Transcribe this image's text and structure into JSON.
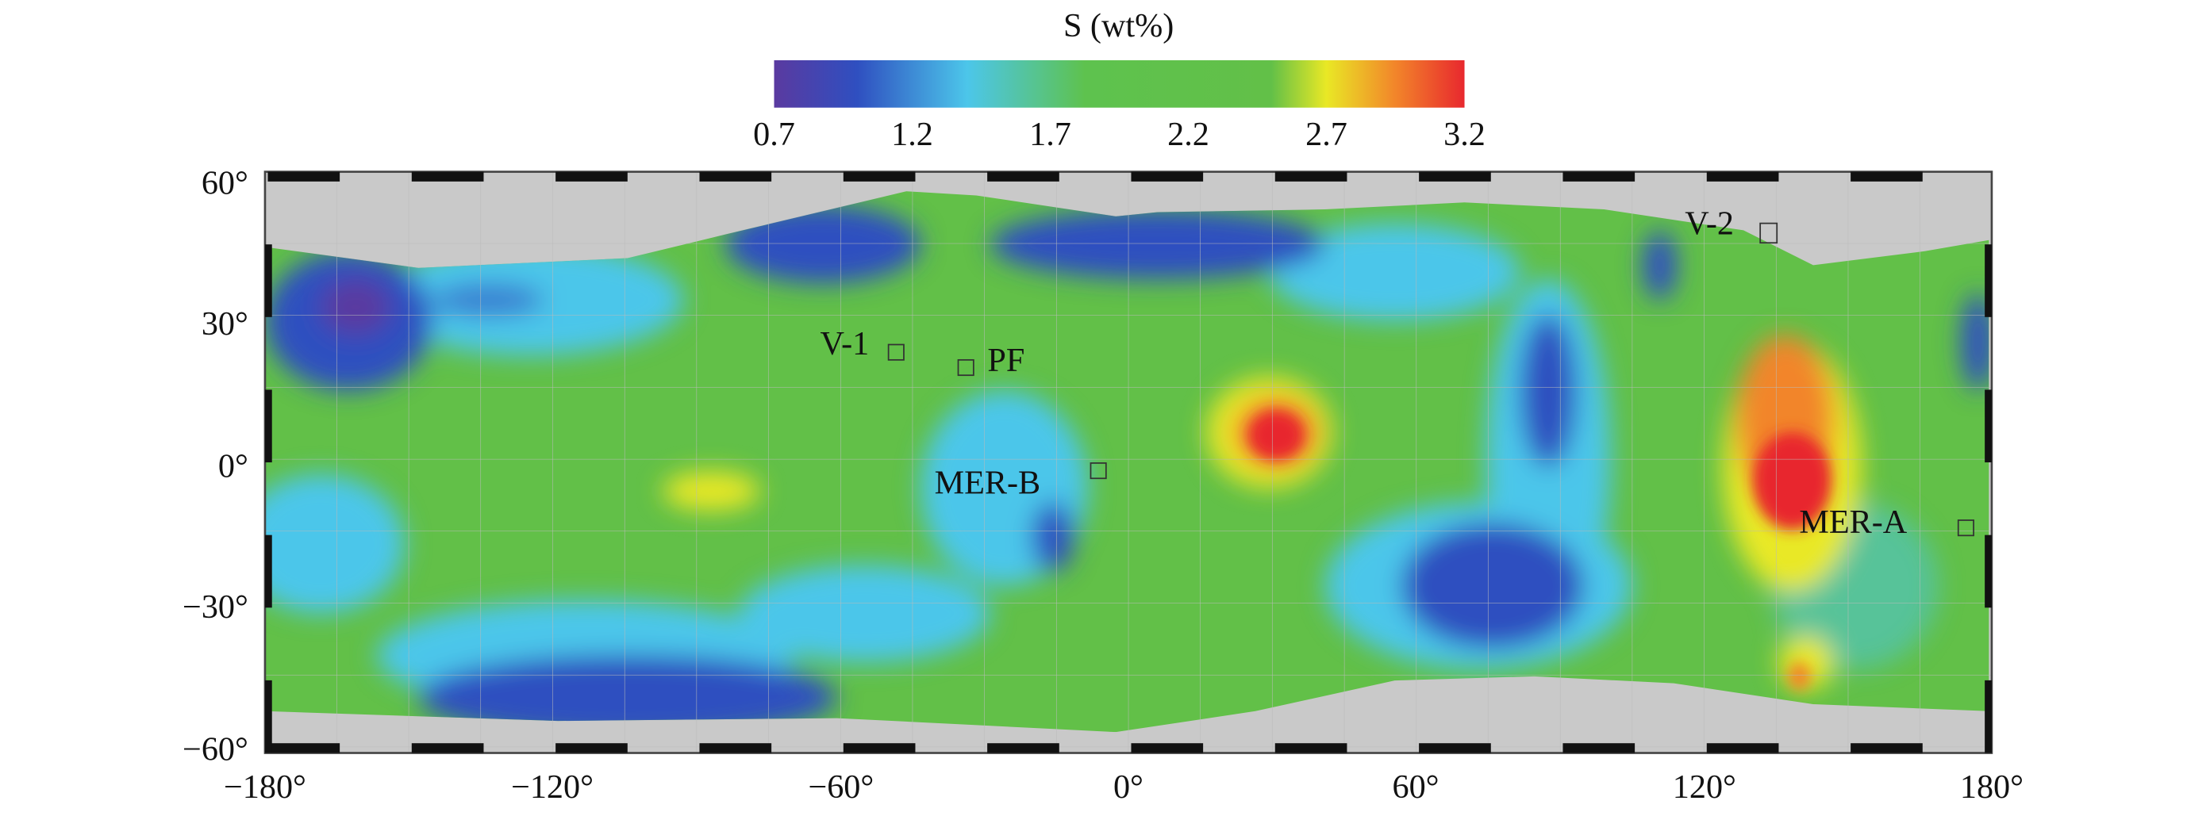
{
  "colorbar": {
    "title": "S (wt%)",
    "ticks": [
      "0.7",
      "1.2",
      "1.7",
      "2.2",
      "2.7",
      "3.2"
    ],
    "range": [
      0.7,
      3.2
    ],
    "colors": [
      "#5a3aa0",
      "#2f4fc0",
      "#4cc6ea",
      "#5ec24e",
      "#62c048",
      "#e9e825",
      "#f2852a",
      "#e8282e"
    ]
  },
  "map": {
    "y_ticks": [
      "60°",
      "30°",
      "0°",
      "−30°",
      "−60°"
    ],
    "x_ticks": [
      "−180°",
      "−120°",
      "−60°",
      "0°",
      "60°",
      "120°",
      "180°"
    ],
    "sites": [
      {
        "label": "V-1"
      },
      {
        "label": "PF"
      },
      {
        "label": "MER-B"
      },
      {
        "label": "V-2"
      },
      {
        "label": "MER-A"
      }
    ]
  }
}
